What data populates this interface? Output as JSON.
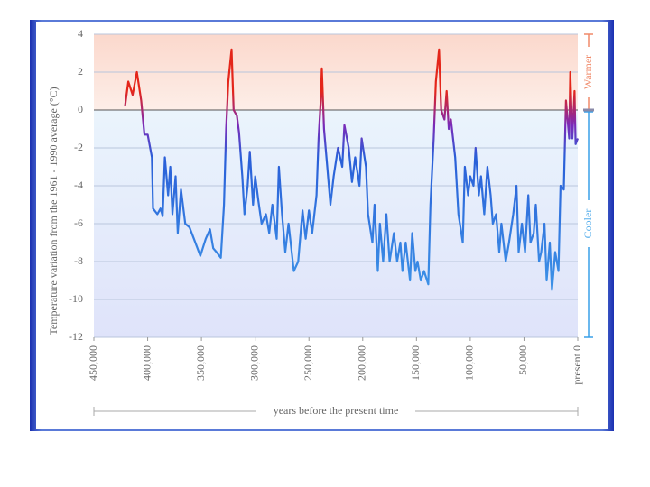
{
  "chart_data": {
    "type": "line",
    "y_label": "Temperature variation from the 1961 - 1990 average (°C)",
    "x_label": "years before the present time",
    "annotations": [
      "Warmer",
      "Cooler"
    ],
    "xlim": [
      450000,
      0
    ],
    "xticks": [
      {
        "value": 450000,
        "label": "450,000"
      },
      {
        "value": 400000,
        "label": "400,000"
      },
      {
        "value": 350000,
        "label": "350,000"
      },
      {
        "value": 300000,
        "label": "300,000"
      },
      {
        "value": 250000,
        "label": "250,000"
      },
      {
        "value": 200000,
        "label": "200,000"
      },
      {
        "value": 150000,
        "label": "150,000"
      },
      {
        "value": 100000,
        "label": "100,000"
      },
      {
        "value": 50000,
        "label": "50,000"
      },
      {
        "value": 0,
        "label": "present  0"
      }
    ],
    "ylim": [
      -12,
      4
    ],
    "yticks": [
      -12,
      -10,
      -8,
      -6,
      -4,
      -2,
      0,
      2,
      4
    ],
    "grid": true,
    "warm_color": "#e4261a",
    "cool_color": "#3b8fe6",
    "series": [
      {
        "color": "#2a5fd8",
        "x": [
          421000,
          418000,
          414000,
          410000,
          406000,
          403000,
          400000,
          396000,
          395000,
          391000,
          388000,
          386000,
          384000,
          381000,
          379000,
          377000,
          374000,
          372000,
          369000,
          365000,
          361000,
          357000,
          351000,
          346000,
          342000,
          339000,
          336000,
          332000,
          329000,
          327000,
          325000,
          322000,
          320000,
          317000,
          315000,
          312000,
          310000,
          307000,
          305000,
          302000,
          300000,
          297000,
          294000,
          290000,
          287000,
          284000,
          280000,
          278000,
          275000,
          272000,
          269000,
          264000,
          260000,
          256000,
          253000,
          250000,
          247000,
          243000,
          241000,
          239000,
          238000,
          236000,
          233000,
          230000,
          227000,
          223000,
          219000,
          217000,
          213000,
          210000,
          207000,
          203000,
          201000,
          197000,
          195000,
          191000,
          189000,
          186000,
          184000,
          181000,
          178000,
          175000,
          171000,
          168000,
          165000,
          163000,
          160000,
          156000,
          154000,
          151000,
          149000,
          146000,
          143000,
          139000,
          137000,
          134000,
          132000,
          129000,
          127000,
          124000,
          122000,
          120000,
          118000,
          114000,
          111000,
          107000,
          105000,
          102000,
          100000,
          97000,
          95000,
          92000,
          90000,
          87000,
          84000,
          81000,
          79000,
          76000,
          73000,
          71000,
          67000,
          64000,
          60000,
          57000,
          55000,
          52000,
          49000,
          46000,
          44000,
          41000,
          39000,
          36000,
          34000,
          31000,
          29000,
          26000,
          24000,
          21000,
          18000,
          16000,
          13000,
          11000,
          8000,
          7000,
          5000,
          3000,
          2000,
          0
        ],
        "values": [
          0.2,
          1.5,
          0.8,
          2.0,
          0.5,
          -1.3,
          -1.3,
          -2.5,
          -5.2,
          -5.5,
          -5.2,
          -5.6,
          -2.5,
          -4.5,
          -3.0,
          -5.5,
          -3.5,
          -6.5,
          -4.2,
          -6.0,
          -6.2,
          -6.8,
          -7.7,
          -6.8,
          -6.3,
          -7.3,
          -7.5,
          -7.8,
          -5.0,
          -1.0,
          1.5,
          3.2,
          0.0,
          -0.3,
          -1.2,
          -3.5,
          -5.5,
          -4.0,
          -2.2,
          -5.0,
          -3.5,
          -4.8,
          -6.0,
          -5.5,
          -6.5,
          -5.0,
          -6.8,
          -3.0,
          -5.5,
          -7.5,
          -6.0,
          -8.5,
          -8.0,
          -5.3,
          -6.8,
          -5.3,
          -6.5,
          -4.5,
          -1.5,
          0.5,
          2.2,
          -1.0,
          -3.0,
          -5.0,
          -3.5,
          -2.0,
          -3.0,
          -0.8,
          -2.0,
          -3.8,
          -2.5,
          -4.0,
          -1.5,
          -3.0,
          -5.5,
          -7.0,
          -5.0,
          -8.5,
          -6.0,
          -8.0,
          -5.5,
          -8.0,
          -6.5,
          -8.0,
          -7.0,
          -8.5,
          -7.0,
          -9.0,
          -6.5,
          -8.5,
          -8.0,
          -9.0,
          -8.5,
          -9.2,
          -5.0,
          -1.5,
          1.5,
          3.2,
          0.0,
          -0.5,
          1.0,
          -1.0,
          -0.5,
          -2.5,
          -5.5,
          -7.0,
          -3.0,
          -4.5,
          -3.5,
          -4.0,
          -2.0,
          -4.5,
          -3.5,
          -5.5,
          -3.0,
          -4.5,
          -6.0,
          -5.5,
          -7.5,
          -6.0,
          -8.0,
          -7.0,
          -5.5,
          -4.0,
          -7.5,
          -6.0,
          -7.5,
          -4.5,
          -7.0,
          -6.5,
          -5.0,
          -8.0,
          -7.5,
          -6.0,
          -9.0,
          -7.0,
          -9.5,
          -7.5,
          -8.5,
          -4.0,
          -4.2,
          0.5,
          -1.5,
          2.0,
          -1.5,
          1.0,
          -1.8,
          -1.5
        ]
      }
    ]
  }
}
